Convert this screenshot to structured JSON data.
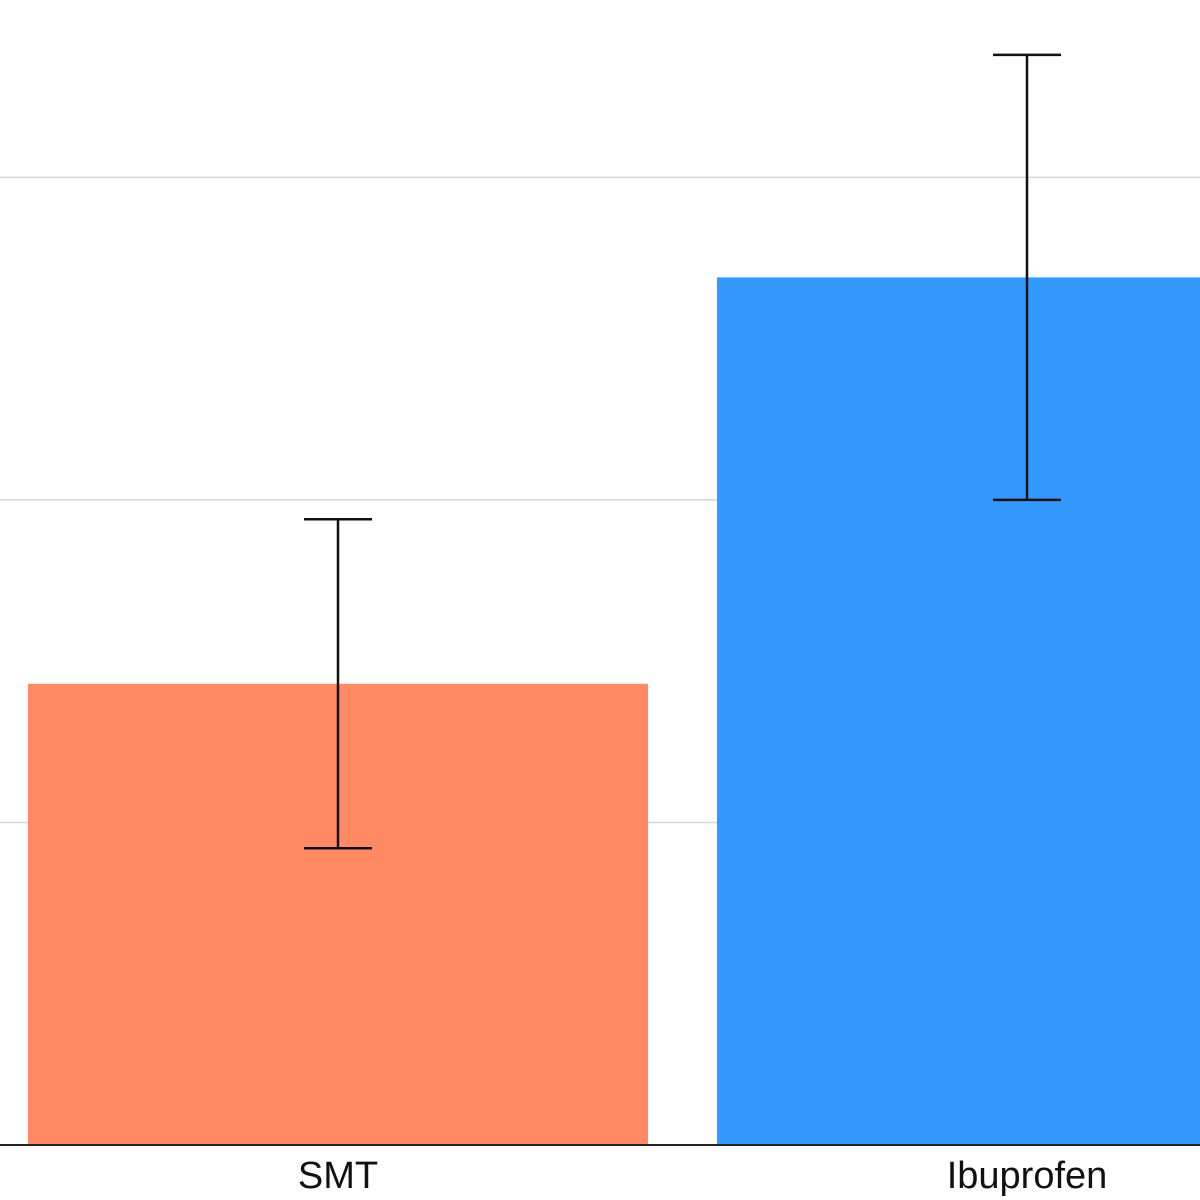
{
  "chart_data": {
    "type": "bar",
    "categories": [
      "SMT",
      "Ibuprofen"
    ],
    "values": [
      1.43,
      2.69
    ],
    "errors": [
      0.51,
      0.69
    ],
    "colors": [
      "#ff8a63",
      "#3399ff"
    ],
    "ylim": [
      0,
      3.55
    ],
    "yticks": [
      0,
      1,
      2,
      3
    ],
    "grid": true
  }
}
